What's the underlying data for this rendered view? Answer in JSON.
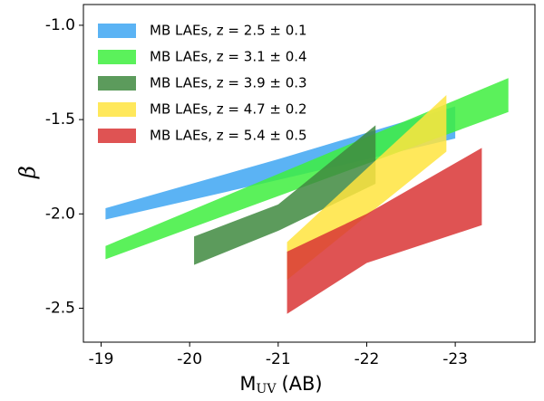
{
  "chart_data": {
    "type": "band",
    "xlabel": {
      "main": "M",
      "sub": "UV",
      "rest": "(AB)"
    },
    "ylabel": "β",
    "xlim": [
      -18.8,
      -23.9
    ],
    "ylim": [
      -2.68,
      -0.89
    ],
    "xticks": [
      -19,
      -20,
      -21,
      -22,
      -23
    ],
    "yticks": [
      {
        "value": -1.0,
        "label": "-1.0"
      },
      {
        "value": -1.5,
        "label": "-1.5"
      },
      {
        "value": -2.0,
        "label": "-2.0"
      },
      -2.5
    ],
    "alpha": 0.85,
    "legend": "upper left",
    "series": [
      {
        "name": "MB LAEs, z = 2.5 ± 0.1",
        "color": "#3ea6f2",
        "x": [
          -19.05,
          -21,
          -23
        ],
        "lower": [
          -2.03,
          -1.82,
          -1.6
        ],
        "upper": [
          -1.97,
          -1.71,
          -1.43
        ]
      },
      {
        "name": "MB LAEs, z = 3.1 ± 0.4",
        "color": "#3eee3e",
        "x": [
          -19.05,
          -23.6
        ],
        "lower": [
          -2.24,
          -1.46
        ],
        "upper": [
          -2.17,
          -1.28
        ]
      },
      {
        "name": "MB LAEs, z = 3.9 ± 0.3",
        "color": "#3f8a3f",
        "x": [
          -20.05,
          -21,
          -22.1
        ],
        "lower": [
          -2.27,
          -2.09,
          -1.84
        ],
        "upper": [
          -2.12,
          -1.95,
          -1.53
        ]
      },
      {
        "name": "MB LAEs, z = 4.7 ± 0.2",
        "color": "#ffe43e",
        "x": [
          -21.1,
          -22.9
        ],
        "lower": [
          -2.35,
          -1.67
        ],
        "upper": [
          -2.15,
          -1.37
        ]
      },
      {
        "name": "MB LAEs, z = 5.4 ± 0.5",
        "color": "#d93535",
        "x": [
          -21.1,
          -22,
          -23.3
        ],
        "lower": [
          -2.53,
          -2.26,
          -2.06
        ],
        "upper": [
          -2.2,
          -2.0,
          -1.65
        ]
      }
    ]
  }
}
